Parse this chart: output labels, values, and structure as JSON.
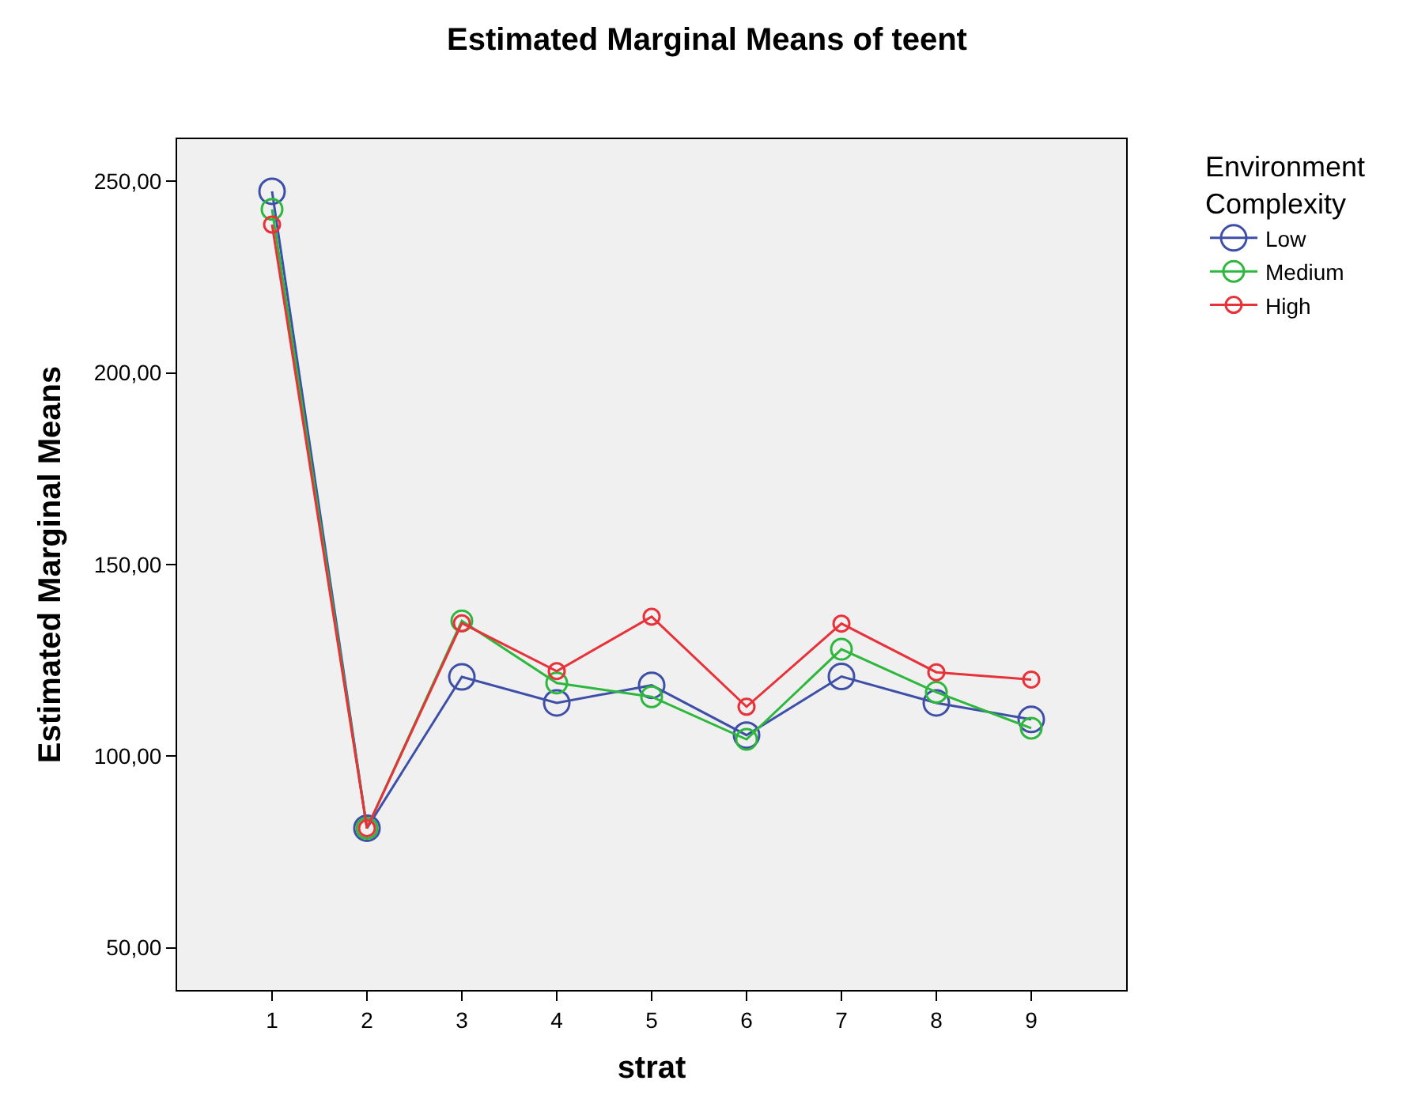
{
  "chart_data": {
    "type": "line",
    "title": "Estimated Marginal Means of teent",
    "xlabel": "strat",
    "ylabel": "Estimated Marginal Means",
    "legend_title": "Environment\nComplexity",
    "x": [
      1,
      2,
      3,
      4,
      5,
      6,
      7,
      8,
      9
    ],
    "series": [
      {
        "name": "Low",
        "color": "#3e4fa8",
        "values": [
          247.4,
          81.2,
          120.7,
          113.9,
          118.5,
          105.5,
          120.8,
          113.9,
          109.6
        ]
      },
      {
        "name": "Medium",
        "color": "#2db83d",
        "values": [
          242.7,
          81.2,
          135.3,
          119.1,
          115.5,
          104.4,
          127.9,
          116.7,
          107.3
        ]
      },
      {
        "name": "High",
        "color": "#e8323a",
        "values": [
          238.7,
          81.2,
          134.7,
          122.2,
          136.4,
          112.9,
          134.6,
          121.9,
          120.0
        ]
      }
    ],
    "xlim": [
      0,
      10
    ],
    "xticks": [
      1,
      2,
      3,
      4,
      5,
      6,
      7,
      8,
      9
    ],
    "ylim": [
      39,
      261
    ],
    "yticks": [
      {
        "value": 50,
        "label": "50,00"
      },
      {
        "value": 100,
        "label": "100,00"
      },
      {
        "value": 150,
        "label": "150,00"
      },
      {
        "value": 200,
        "label": "200,00"
      },
      {
        "value": 250,
        "label": "250,00"
      }
    ],
    "grid": false,
    "legend": "top right",
    "marker": "circle",
    "line_style": "solid"
  }
}
